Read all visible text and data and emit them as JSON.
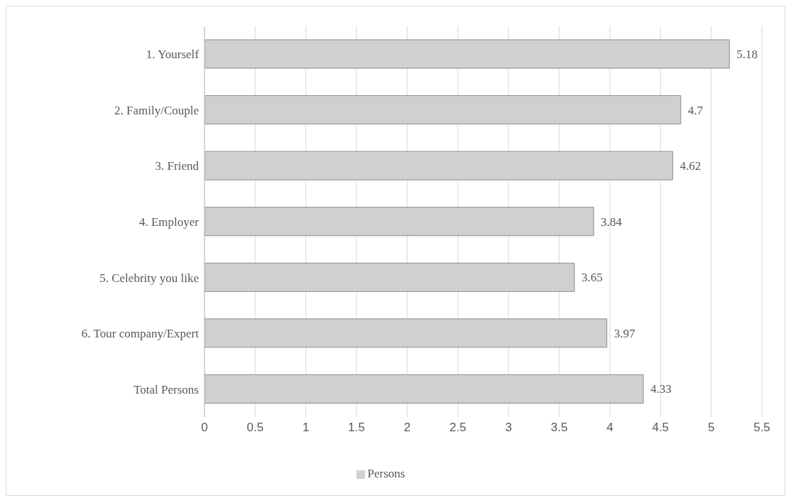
{
  "chart_data": {
    "type": "bar",
    "orientation": "horizontal",
    "categories": [
      "1.  Yourself",
      "2.  Family/Couple",
      "3.  Friend",
      "4.  Employer",
      "5.  Celebrity you like",
      "6.  Tour company/Expert",
      "Total Persons"
    ],
    "series": [
      {
        "name": "Persons",
        "color": "#d0d0d0",
        "values": [
          5.18,
          4.7,
          4.62,
          3.84,
          3.65,
          3.97,
          4.33
        ]
      }
    ],
    "xlim": [
      0,
      5.5
    ],
    "xticks": [
      0,
      0.5,
      1,
      1.5,
      2,
      2.5,
      3,
      3.5,
      4,
      4.5,
      5,
      5.5
    ],
    "grid": "x",
    "legend": "bottom",
    "data_labels": true
  }
}
